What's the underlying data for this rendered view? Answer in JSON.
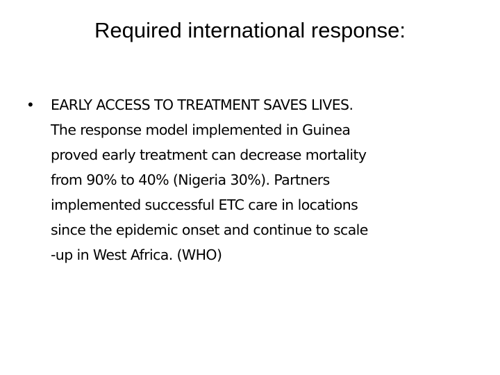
{
  "slide": {
    "title": "Required international response:",
    "bullet_symbol": "•",
    "bullet_lines": [
      "EARLY ACCESS TO TREATMENT SAVES LIVES.",
      "The response model implemented in Guinea",
      "proved early treatment can decrease mortality",
      "from 90% to 40% (Nigeria 30%). Partners",
      "implemented successful ETC care in locations",
      "since the epidemic onset and continue to scale",
      "-up in West Africa. (WHO)"
    ]
  }
}
